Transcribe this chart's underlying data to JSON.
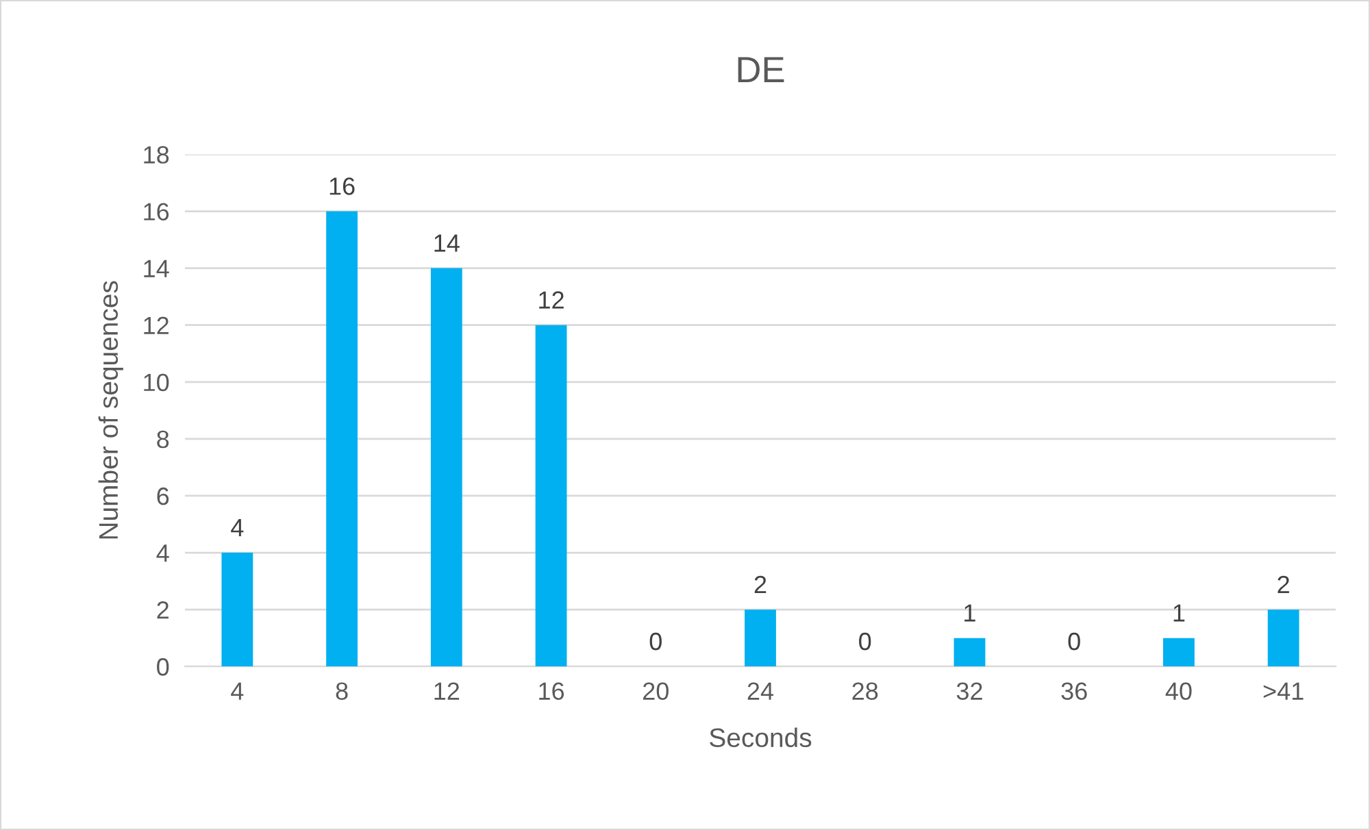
{
  "chart_data": {
    "type": "bar",
    "title": "DE",
    "xlabel": "Seconds",
    "ylabel": "Number of sequences",
    "categories": [
      "4",
      "8",
      "12",
      "16",
      "20",
      "24",
      "28",
      "32",
      "36",
      "40",
      ">41"
    ],
    "values": [
      4,
      16,
      14,
      12,
      0,
      2,
      0,
      1,
      0,
      1,
      2
    ],
    "color": "#00b0f0",
    "ylim": [
      0,
      18
    ],
    "yticks": [
      0,
      2,
      4,
      6,
      8,
      10,
      12,
      14,
      16,
      18
    ],
    "grid": "y",
    "data_labels": true
  }
}
